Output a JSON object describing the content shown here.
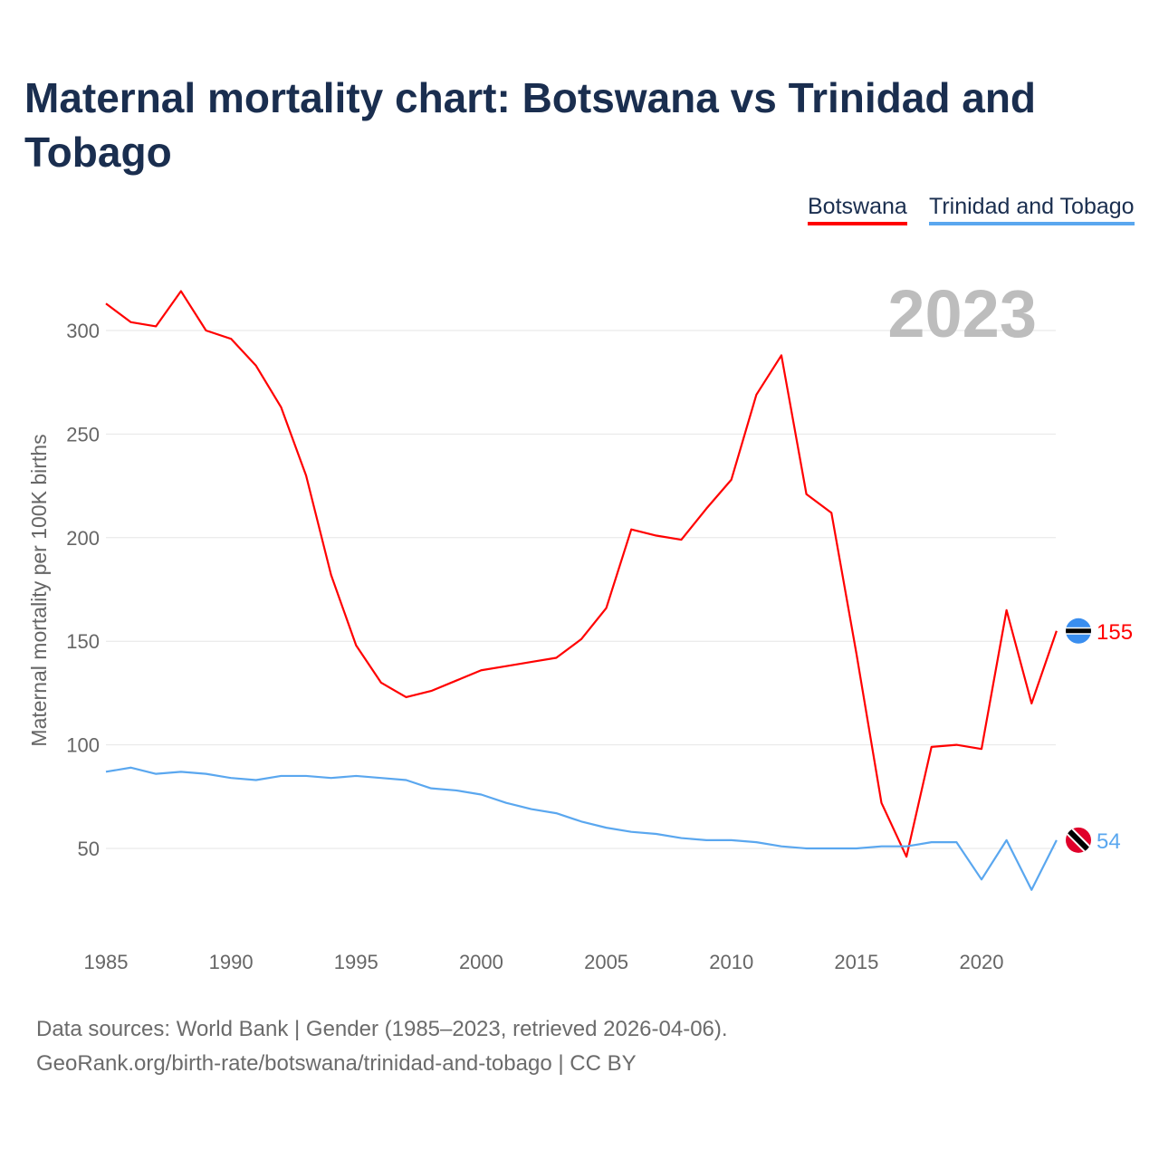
{
  "title": "Maternal mortality chart: Botswana vs Trinidad and Tobago",
  "footer": {
    "line1": "Data sources: World Bank | Gender (1985–2023, retrieved 2026-04-06).",
    "line2": "GeoRank.org/birth-rate/botswana/trinidad-and-tobago | CC BY"
  },
  "chart_data": {
    "type": "line",
    "title": "Maternal mortality chart: Botswana vs Trinidad and Tobago",
    "ylabel": "Maternal mortality per 100K births",
    "xlabel": "",
    "year_label": "2023",
    "x": [
      1985,
      1986,
      1987,
      1988,
      1989,
      1990,
      1991,
      1992,
      1993,
      1994,
      1995,
      1996,
      1997,
      1998,
      1999,
      2000,
      2001,
      2002,
      2003,
      2004,
      2005,
      2006,
      2007,
      2008,
      2009,
      2010,
      2011,
      2012,
      2013,
      2014,
      2015,
      2016,
      2017,
      2018,
      2019,
      2020,
      2021,
      2022,
      2023
    ],
    "xticks": [
      1985,
      1990,
      1995,
      2000,
      2005,
      2010,
      2015,
      2020
    ],
    "yticks": [
      50,
      100,
      150,
      200,
      250,
      300
    ],
    "xlim": [
      1985,
      2023
    ],
    "ylim": [
      20,
      330
    ],
    "grid": true,
    "legend_position": "top-right",
    "series": [
      {
        "name": "Botswana",
        "color": "#ff0000",
        "end_label": "155",
        "flag": "botswana-flag",
        "values": [
          313,
          304,
          302,
          319,
          300,
          296,
          283,
          263,
          230,
          182,
          148,
          130,
          123,
          126,
          131,
          136,
          138,
          140,
          142,
          151,
          166,
          204,
          201,
          199,
          214,
          228,
          269,
          288,
          221,
          212,
          144,
          72,
          46,
          99,
          100,
          98,
          165,
          120,
          155
        ]
      },
      {
        "name": "Trinidad and Tobago",
        "color": "#5aa7ef",
        "end_label": "54",
        "flag": "trinidad-and-tobago-flag",
        "values": [
          87,
          89,
          86,
          87,
          86,
          84,
          83,
          85,
          85,
          84,
          85,
          84,
          83,
          79,
          78,
          76,
          72,
          69,
          67,
          63,
          60,
          58,
          57,
          55,
          54,
          54,
          53,
          51,
          50,
          50,
          50,
          51,
          51,
          53,
          53,
          35,
          54,
          30,
          54
        ]
      }
    ]
  }
}
